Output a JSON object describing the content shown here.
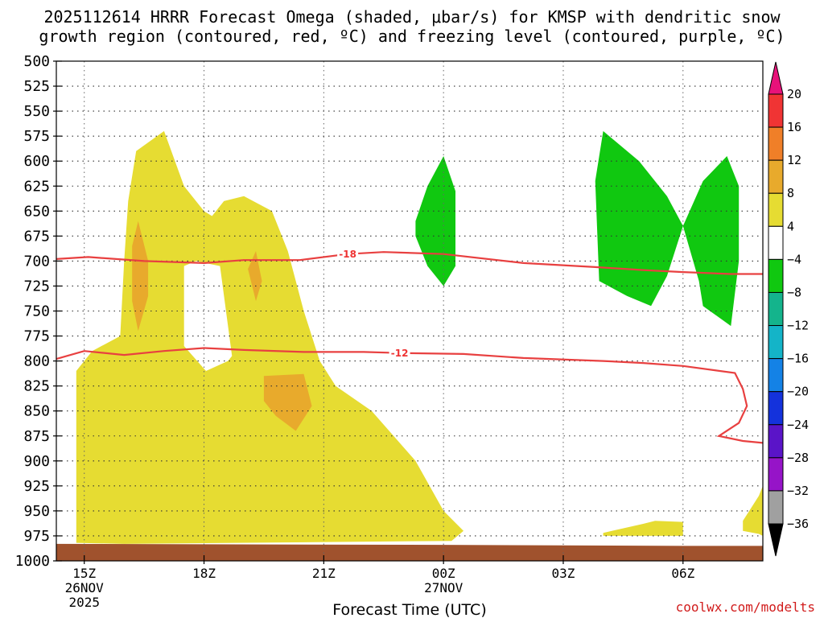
{
  "chart_data": {
    "type": "area",
    "title_line1": "2025112614 HRRR Forecast Omega (shaded, μbar/s) for KMSP with dendritic snow",
    "title_line2": "growth region (contoured, red, ºC) and freezing level (contoured, purple, ºC)",
    "xlabel": "Forecast Time (UTC)",
    "credit": "coolwx.com/modelts",
    "x_range_hours": [
      14.3,
      32.0
    ],
    "y_range_hpa": [
      500,
      1000
    ],
    "y_ticks": [
      "500",
      "525",
      "550",
      "575",
      "600",
      "625",
      "650",
      "675",
      "700",
      "725",
      "750",
      "775",
      "800",
      "825",
      "850",
      "875",
      "900",
      "925",
      "950",
      "975",
      "1000"
    ],
    "x_ticks": [
      {
        "hour": 15,
        "label": "15Z",
        "date": "26NOV",
        "year": "2025"
      },
      {
        "hour": 18,
        "label": "18Z",
        "date": "",
        "year": ""
      },
      {
        "hour": 21,
        "label": "21Z",
        "date": "",
        "year": ""
      },
      {
        "hour": 24,
        "label": "00Z",
        "date": "27NOV",
        "year": ""
      },
      {
        "hour": 27,
        "label": "03Z",
        "date": "",
        "year": ""
      },
      {
        "hour": 30,
        "label": "06Z",
        "date": "",
        "year": ""
      }
    ],
    "colorbar": {
      "labels": [
        "20",
        "16",
        "12",
        "8",
        "4",
        "−4",
        "−8",
        "−12",
        "−16",
        "−20",
        "−24",
        "−28",
        "−32",
        "−36"
      ],
      "colors": [
        "#e8127a",
        "#f03434",
        "#f07f28",
        "#e8aa2c",
        "#e6dc32",
        "#ffffff",
        "#10c810",
        "#14b48c",
        "#14b4c8",
        "#1482e6",
        "#1432dc",
        "#5a14c8",
        "#9614c8",
        "#a0a0a0",
        "#000000"
      ]
    },
    "shaded_regions": [
      {
        "name": "omega-4to8-main",
        "color": "#e6dc32",
        "points": [
          [
            14.8,
            975
          ],
          [
            14.8,
            810
          ],
          [
            15.2,
            790
          ],
          [
            15.9,
            775
          ],
          [
            16.0,
            700
          ],
          [
            16.1,
            640
          ],
          [
            16.3,
            590
          ],
          [
            17.0,
            570
          ],
          [
            17.5,
            625
          ],
          [
            18.0,
            650
          ],
          [
            18.2,
            655
          ],
          [
            18.5,
            640
          ],
          [
            19.0,
            635
          ],
          [
            19.7,
            650
          ],
          [
            20.1,
            690
          ],
          [
            20.5,
            750
          ],
          [
            20.9,
            800
          ],
          [
            21.3,
            825
          ],
          [
            22.2,
            850
          ],
          [
            23.3,
            900
          ],
          [
            24.0,
            950
          ],
          [
            24.5,
            970
          ],
          [
            24.2,
            980
          ],
          [
            16,
            983
          ],
          [
            14.8,
            982
          ]
        ]
      },
      {
        "name": "omega-8to12-upper",
        "color": "#e8aa2c",
        "points": [
          [
            16.2,
            685
          ],
          [
            16.35,
            660
          ],
          [
            16.6,
            700
          ],
          [
            16.6,
            735
          ],
          [
            16.35,
            770
          ],
          [
            16.2,
            740
          ]
        ]
      },
      {
        "name": "omega-8to12-mid",
        "color": "#e8aa2c",
        "points": [
          [
            19.1,
            708
          ],
          [
            19.3,
            690
          ],
          [
            19.45,
            720
          ],
          [
            19.3,
            740
          ]
        ]
      },
      {
        "name": "omega-8to12-lower",
        "color": "#e8aa2c",
        "points": [
          [
            19.5,
            815
          ],
          [
            20.5,
            813
          ],
          [
            20.7,
            845
          ],
          [
            20.3,
            870
          ],
          [
            19.8,
            855
          ],
          [
            19.5,
            840
          ]
        ]
      },
      {
        "name": "omega-0to4-gap",
        "color": "#ffffff",
        "points": [
          [
            17.5,
            705
          ],
          [
            17.8,
            700
          ],
          [
            18.4,
            705
          ],
          [
            18.7,
            795
          ],
          [
            18.6,
            800
          ],
          [
            18.05,
            810
          ],
          [
            17.5,
            785
          ]
        ]
      },
      {
        "name": "omega-4to8-lower-right",
        "color": "#e6dc32",
        "points": [
          [
            28.0,
            972
          ],
          [
            29.0,
            963
          ],
          [
            29.3,
            960
          ],
          [
            30.0,
            961
          ],
          [
            30.0,
            975
          ],
          [
            28.0,
            975
          ]
        ]
      },
      {
        "name": "omega-4to8-edge",
        "color": "#e6dc32",
        "points": [
          [
            31.5,
            960
          ],
          [
            31.9,
            935
          ],
          [
            32.0,
            925
          ],
          [
            32.0,
            975
          ],
          [
            31.9,
            973
          ],
          [
            31.5,
            970
          ]
        ]
      },
      {
        "name": "omega-m4to-m8-a",
        "color": "#10c810",
        "points": [
          [
            23.3,
            660
          ],
          [
            23.6,
            625
          ],
          [
            24.0,
            595
          ],
          [
            24.3,
            630
          ],
          [
            24.3,
            705
          ],
          [
            24.0,
            725
          ],
          [
            23.6,
            705
          ],
          [
            23.3,
            675
          ]
        ]
      },
      {
        "name": "omega-m4to-m8-b",
        "color": "#10c810",
        "points": [
          [
            27.8,
            620
          ],
          [
            28.0,
            570
          ],
          [
            28.9,
            600
          ],
          [
            29.6,
            635
          ],
          [
            30.0,
            665
          ],
          [
            29.6,
            715
          ],
          [
            29.2,
            745
          ],
          [
            28.6,
            735
          ],
          [
            27.9,
            720
          ]
        ]
      },
      {
        "name": "omega-m4to-m8-c",
        "color": "#10c810",
        "points": [
          [
            30.0,
            665
          ],
          [
            30.5,
            620
          ],
          [
            31.1,
            595
          ],
          [
            31.4,
            625
          ],
          [
            31.4,
            700
          ],
          [
            31.2,
            765
          ],
          [
            30.5,
            745
          ],
          [
            30.4,
            720
          ]
        ]
      }
    ],
    "ground": {
      "color": "#a0522d",
      "pressure_top": 983
    },
    "contours": [
      {
        "name": "isotherm-minus-18",
        "label": "-18",
        "label_at": [
          21.6,
          693
        ],
        "color": "#e84040",
        "points": [
          [
            14.3,
            698
          ],
          [
            15.1,
            696
          ],
          [
            16.5,
            700
          ],
          [
            18.0,
            702
          ],
          [
            19.0,
            699
          ],
          [
            20.4,
            699
          ],
          [
            21.6,
            693
          ],
          [
            22.5,
            691
          ],
          [
            24.0,
            693
          ],
          [
            26.0,
            702
          ],
          [
            27.8,
            706
          ],
          [
            29.0,
            709
          ],
          [
            30.0,
            711
          ],
          [
            31.2,
            713
          ],
          [
            32.0,
            713
          ]
        ]
      },
      {
        "name": "isotherm-minus-12",
        "label": "-12",
        "label_at": [
          22.9,
          792
        ],
        "color": "#e84040",
        "points": [
          [
            14.3,
            798
          ],
          [
            15.0,
            790
          ],
          [
            16.0,
            794
          ],
          [
            17.0,
            790
          ],
          [
            18.0,
            787
          ],
          [
            19.0,
            789
          ],
          [
            20.5,
            791
          ],
          [
            22.0,
            791
          ],
          [
            22.9,
            792
          ],
          [
            24.5,
            793
          ],
          [
            26.0,
            797
          ],
          [
            28.0,
            800
          ],
          [
            29.0,
            802
          ],
          [
            30.0,
            805
          ],
          [
            31.3,
            812
          ],
          [
            31.5,
            828
          ],
          [
            31.6,
            845
          ],
          [
            31.4,
            862
          ],
          [
            30.9,
            875
          ],
          [
            31.5,
            880
          ],
          [
            32.0,
            882
          ]
        ]
      }
    ]
  }
}
